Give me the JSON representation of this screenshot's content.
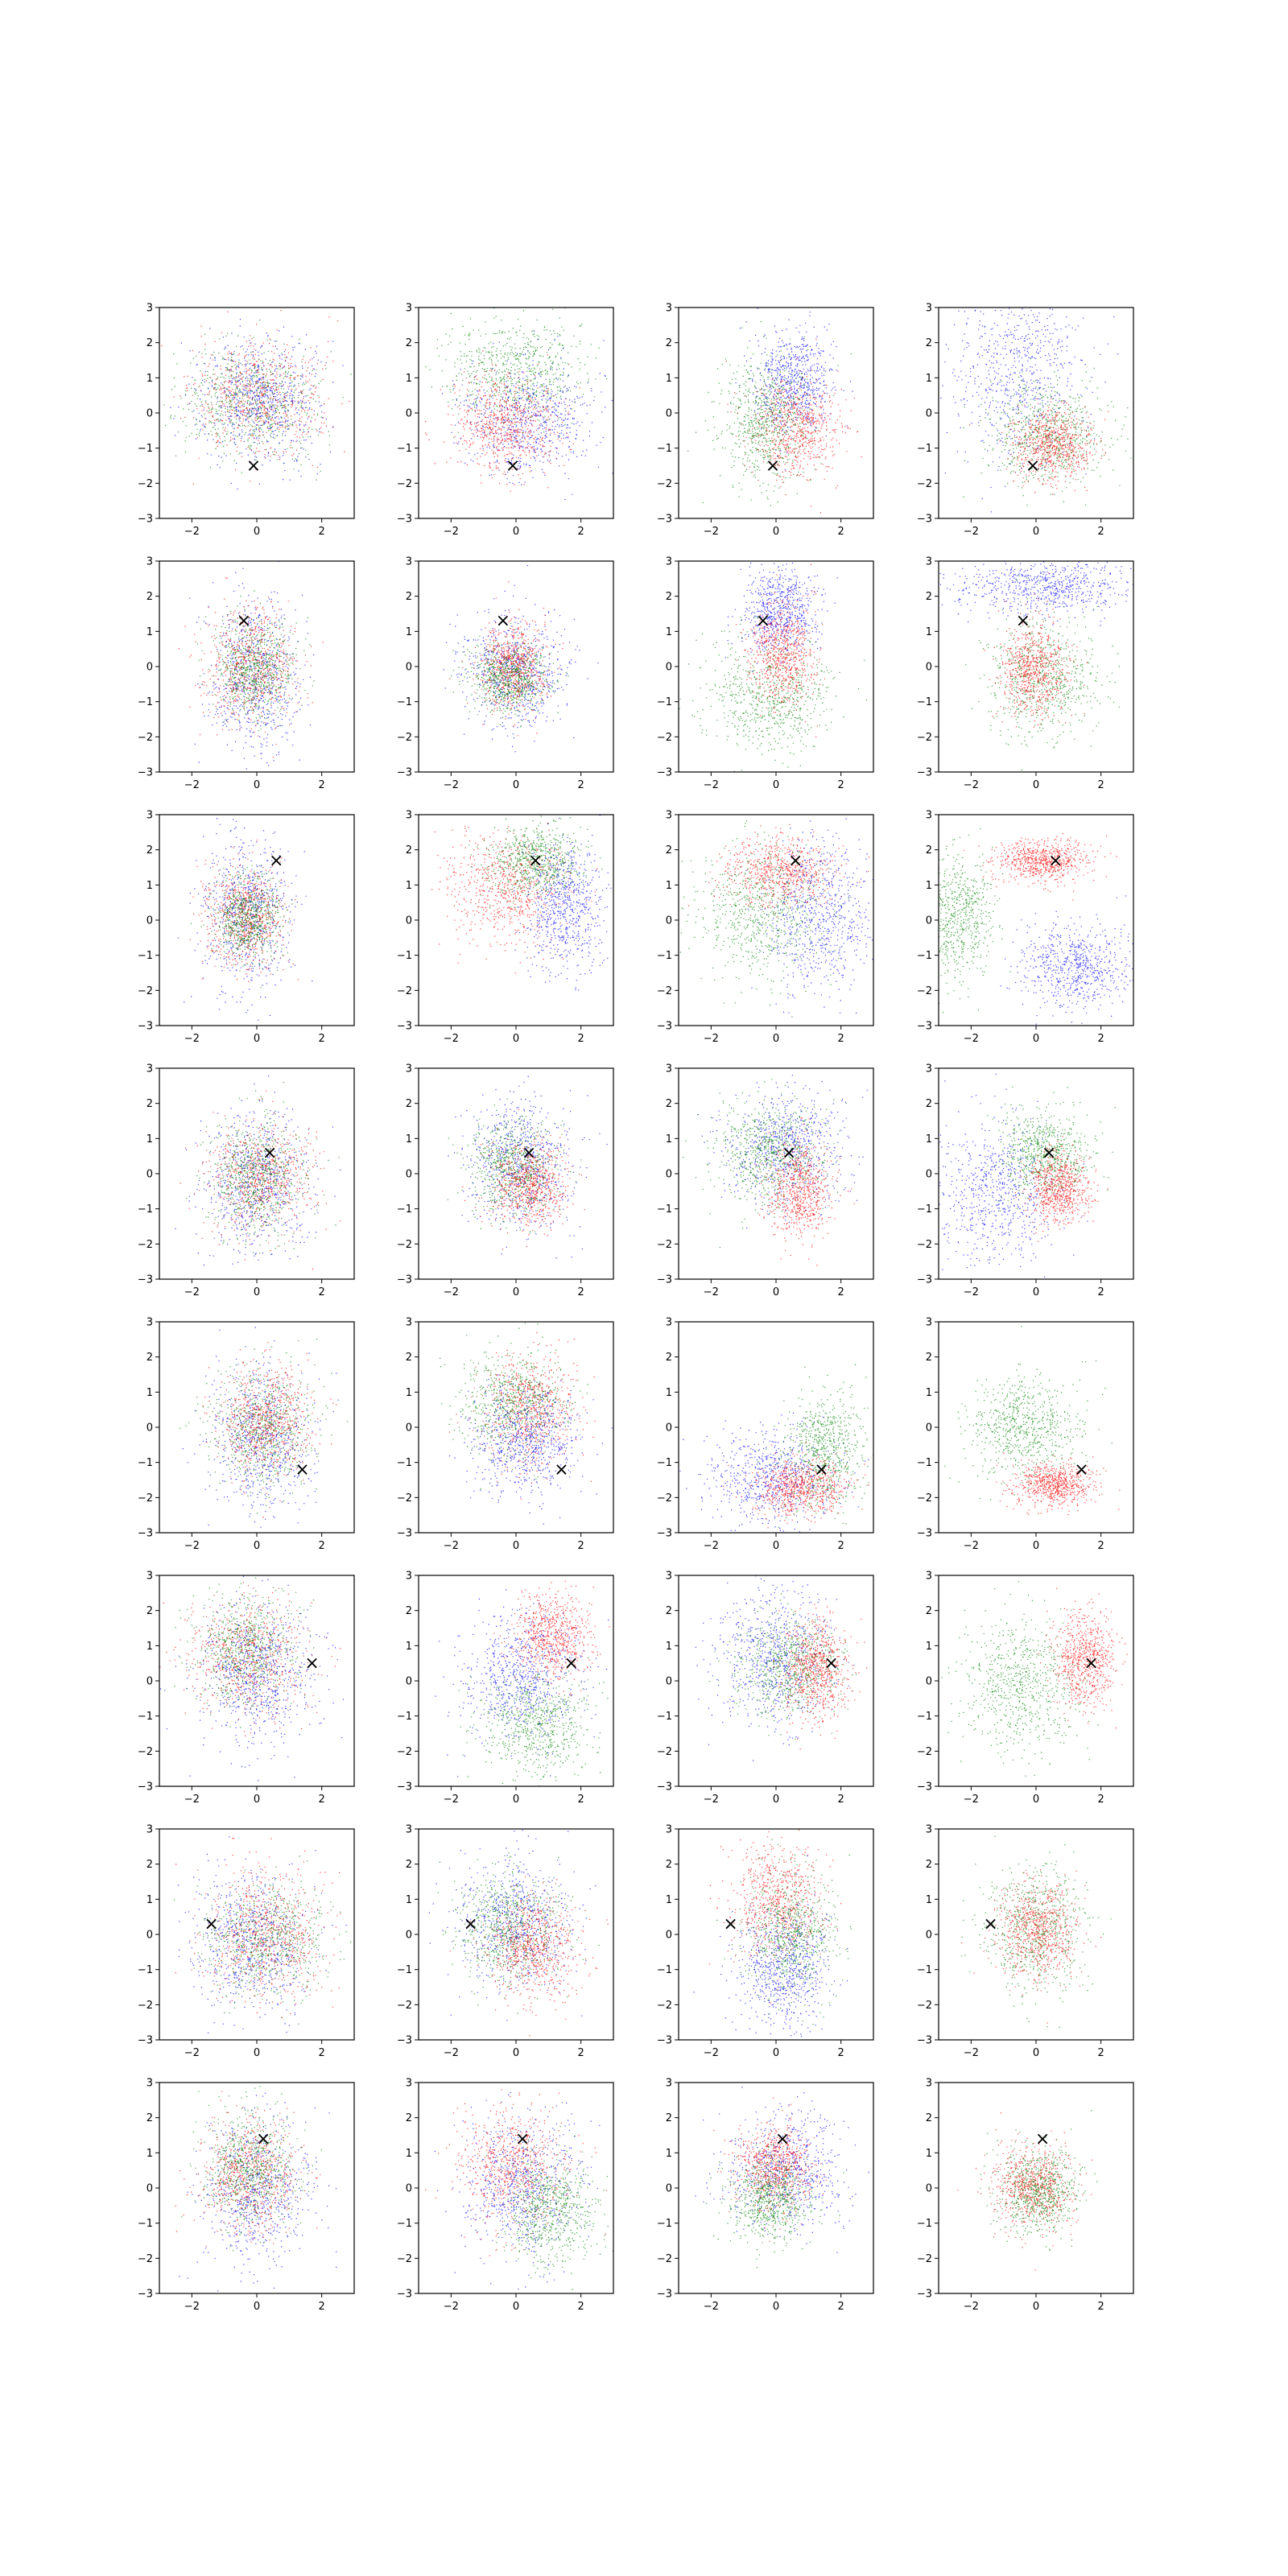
{
  "chart_data": {
    "type": "scatter",
    "layout": {
      "rows": 8,
      "cols": 4
    },
    "axes": {
      "xlim": [
        -3,
        3
      ],
      "ylim": [
        -3,
        3
      ],
      "xticks": [
        -2,
        0,
        2
      ],
      "yticks": [
        -3,
        -2,
        -1,
        0,
        1,
        2,
        3
      ],
      "xtick_labels": [
        "−2",
        "0",
        "2"
      ],
      "ytick_labels": [
        "−3",
        "−2",
        "−1",
        "0",
        "1",
        "2",
        "3"
      ],
      "grid": false
    },
    "colors": {
      "red": "#ff0000",
      "green": "#008000",
      "blue": "#0000ff",
      "marker": "#000000"
    },
    "marker_symbol": "×",
    "points_per_cluster": 700,
    "markers": [
      {
        "row": 0,
        "x": -0.1,
        "y": -1.5
      },
      {
        "row": 1,
        "x": -0.4,
        "y": 1.3
      },
      {
        "row": 2,
        "x": 0.6,
        "y": 1.7
      },
      {
        "row": 3,
        "x": 0.4,
        "y": 0.6
      },
      {
        "row": 4,
        "x": 1.4,
        "y": -1.2
      },
      {
        "row": 5,
        "x": 1.7,
        "y": 0.5
      },
      {
        "row": 6,
        "x": -1.4,
        "y": 0.3
      },
      {
        "row": 7,
        "x": 0.2,
        "y": 1.4
      }
    ],
    "panels": [
      {
        "row": 0,
        "col": 0,
        "clusters": [
          {
            "color": "red",
            "cx": 0.0,
            "cy": 0.4,
            "sx": 1.0,
            "sy": 0.8
          },
          {
            "color": "green",
            "cx": -0.2,
            "cy": 0.4,
            "sx": 1.0,
            "sy": 0.8
          },
          {
            "color": "blue",
            "cx": 0.1,
            "cy": 0.4,
            "sx": 0.9,
            "sy": 0.9
          }
        ]
      },
      {
        "row": 0,
        "col": 1,
        "clusters": [
          {
            "color": "green",
            "cx": 0.0,
            "cy": 1.2,
            "sx": 1.1,
            "sy": 0.7
          },
          {
            "color": "blue",
            "cx": 0.4,
            "cy": -0.2,
            "sx": 1.0,
            "sy": 0.8
          },
          {
            "color": "red",
            "cx": -0.3,
            "cy": -0.3,
            "sx": 0.8,
            "sy": 0.7
          }
        ]
      },
      {
        "row": 0,
        "col": 2,
        "clusters": [
          {
            "color": "blue",
            "cx": 0.5,
            "cy": 0.9,
            "sx": 0.6,
            "sy": 0.7
          },
          {
            "color": "red",
            "cx": 0.6,
            "cy": -0.4,
            "sx": 0.7,
            "sy": 0.7
          },
          {
            "color": "green",
            "cx": -0.4,
            "cy": -0.2,
            "sx": 0.7,
            "sy": 0.9
          }
        ]
      },
      {
        "row": 0,
        "col": 3,
        "clusters": [
          {
            "color": "blue",
            "cx": -0.6,
            "cy": 1.2,
            "sx": 1.0,
            "sy": 1.3
          },
          {
            "color": "green",
            "cx": 0.3,
            "cy": -0.6,
            "sx": 0.9,
            "sy": 0.7
          },
          {
            "color": "red",
            "cx": 0.5,
            "cy": -0.9,
            "sx": 0.6,
            "sy": 0.5
          }
        ]
      },
      {
        "row": 1,
        "col": 0,
        "clusters": [
          {
            "color": "blue",
            "cx": -0.1,
            "cy": -0.2,
            "sx": 0.7,
            "sy": 1.1
          },
          {
            "color": "red",
            "cx": -0.2,
            "cy": 0.0,
            "sx": 0.7,
            "sy": 0.8
          },
          {
            "color": "green",
            "cx": -0.1,
            "cy": 0.0,
            "sx": 0.6,
            "sy": 0.7
          }
        ]
      },
      {
        "row": 1,
        "col": 1,
        "clusters": [
          {
            "color": "blue",
            "cx": 0.0,
            "cy": -0.1,
            "sx": 0.8,
            "sy": 0.8
          },
          {
            "color": "red",
            "cx": -0.1,
            "cy": 0.0,
            "sx": 0.5,
            "sy": 0.6
          },
          {
            "color": "green",
            "cx": -0.2,
            "cy": -0.3,
            "sx": 0.6,
            "sy": 0.5
          }
        ]
      },
      {
        "row": 1,
        "col": 2,
        "clusters": [
          {
            "color": "blue",
            "cx": 0.1,
            "cy": 1.6,
            "sx": 0.6,
            "sy": 0.6
          },
          {
            "color": "green",
            "cx": -0.2,
            "cy": -0.8,
            "sx": 1.0,
            "sy": 0.8
          },
          {
            "color": "red",
            "cx": 0.2,
            "cy": 0.3,
            "sx": 0.5,
            "sy": 0.7
          }
        ]
      },
      {
        "row": 1,
        "col": 3,
        "clusters": [
          {
            "color": "blue",
            "cx": 0.3,
            "cy": 2.3,
            "sx": 1.3,
            "sy": 0.4
          },
          {
            "color": "green",
            "cx": 0.2,
            "cy": -0.3,
            "sx": 0.9,
            "sy": 0.9
          },
          {
            "color": "red",
            "cx": -0.1,
            "cy": 0.0,
            "sx": 0.5,
            "sy": 0.7
          }
        ]
      },
      {
        "row": 2,
        "col": 0,
        "clusters": [
          {
            "color": "blue",
            "cx": -0.3,
            "cy": 0.2,
            "sx": 0.7,
            "sy": 1.1
          },
          {
            "color": "red",
            "cx": -0.4,
            "cy": 0.1,
            "sx": 0.6,
            "sy": 0.7
          },
          {
            "color": "green",
            "cx": -0.3,
            "cy": 0.1,
            "sx": 0.5,
            "sy": 0.6
          }
        ]
      },
      {
        "row": 2,
        "col": 1,
        "clusters": [
          {
            "color": "red",
            "cx": -0.3,
            "cy": 0.9,
            "sx": 0.9,
            "sy": 0.8
          },
          {
            "color": "green",
            "cx": 0.6,
            "cy": 1.7,
            "sx": 0.7,
            "sy": 0.5
          },
          {
            "color": "blue",
            "cx": 1.5,
            "cy": 0.4,
            "sx": 0.6,
            "sy": 0.9
          }
        ]
      },
      {
        "row": 2,
        "col": 2,
        "clusters": [
          {
            "color": "red",
            "cx": 0.1,
            "cy": 1.4,
            "sx": 0.8,
            "sy": 0.5
          },
          {
            "color": "green",
            "cx": -0.5,
            "cy": 0.2,
            "sx": 1.0,
            "sy": 0.9
          },
          {
            "color": "blue",
            "cx": 1.3,
            "cy": 0.1,
            "sx": 0.8,
            "sy": 1.1
          }
        ]
      },
      {
        "row": 2,
        "col": 3,
        "clusters": [
          {
            "color": "red",
            "cx": 0.2,
            "cy": 1.7,
            "sx": 0.7,
            "sy": 0.3
          },
          {
            "color": "green",
            "cx": -2.5,
            "cy": 0.1,
            "sx": 0.6,
            "sy": 0.9
          },
          {
            "color": "blue",
            "cx": 1.2,
            "cy": -1.3,
            "sx": 0.9,
            "sy": 0.6
          }
        ]
      },
      {
        "row": 3,
        "col": 0,
        "clusters": [
          {
            "color": "blue",
            "cx": 0.0,
            "cy": -0.2,
            "sx": 0.8,
            "sy": 1.0
          },
          {
            "color": "red",
            "cx": 0.1,
            "cy": -0.1,
            "sx": 0.8,
            "sy": 0.8
          },
          {
            "color": "green",
            "cx": 0.0,
            "cy": -0.1,
            "sx": 0.7,
            "sy": 0.8
          }
        ]
      },
      {
        "row": 3,
        "col": 1,
        "clusters": [
          {
            "color": "blue",
            "cx": 0.1,
            "cy": 0.3,
            "sx": 0.8,
            "sy": 0.9
          },
          {
            "color": "green",
            "cx": -0.1,
            "cy": 0.2,
            "sx": 0.7,
            "sy": 0.7
          },
          {
            "color": "red",
            "cx": 0.4,
            "cy": -0.3,
            "sx": 0.6,
            "sy": 0.6
          }
        ]
      },
      {
        "row": 3,
        "col": 2,
        "clusters": [
          {
            "color": "blue",
            "cx": 0.3,
            "cy": 0.8,
            "sx": 0.9,
            "sy": 0.8
          },
          {
            "color": "green",
            "cx": -0.2,
            "cy": 0.6,
            "sx": 0.8,
            "sy": 0.7
          },
          {
            "color": "red",
            "cx": 0.7,
            "cy": -0.4,
            "sx": 0.5,
            "sy": 0.7
          }
        ]
      },
      {
        "row": 3,
        "col": 3,
        "clusters": [
          {
            "color": "blue",
            "cx": -1.2,
            "cy": -0.6,
            "sx": 0.9,
            "sy": 1.0
          },
          {
            "color": "green",
            "cx": 0.3,
            "cy": 0.6,
            "sx": 0.7,
            "sy": 0.6
          },
          {
            "color": "red",
            "cx": 0.7,
            "cy": -0.4,
            "sx": 0.5,
            "sy": 0.5
          }
        ]
      },
      {
        "row": 4,
        "col": 0,
        "clusters": [
          {
            "color": "blue",
            "cx": 0.1,
            "cy": -0.3,
            "sx": 0.8,
            "sy": 1.1
          },
          {
            "color": "green",
            "cx": 0.2,
            "cy": 0.0,
            "sx": 0.8,
            "sy": 0.8
          },
          {
            "color": "red",
            "cx": 0.3,
            "cy": 0.2,
            "sx": 0.7,
            "sy": 0.8
          }
        ]
      },
      {
        "row": 4,
        "col": 1,
        "clusters": [
          {
            "color": "red",
            "cx": 0.4,
            "cy": 0.5,
            "sx": 0.7,
            "sy": 0.8
          },
          {
            "color": "green",
            "cx": -0.1,
            "cy": 0.7,
            "sx": 0.8,
            "sy": 0.7
          },
          {
            "color": "blue",
            "cx": 0.3,
            "cy": -0.4,
            "sx": 0.8,
            "sy": 0.8
          }
        ]
      },
      {
        "row": 4,
        "col": 2,
        "clusters": [
          {
            "color": "blue",
            "cx": -0.1,
            "cy": -1.4,
            "sx": 1.0,
            "sy": 0.7
          },
          {
            "color": "green",
            "cx": 1.5,
            "cy": -0.6,
            "sx": 0.6,
            "sy": 0.8
          },
          {
            "color": "red",
            "cx": 0.8,
            "cy": -1.7,
            "sx": 0.7,
            "sy": 0.4
          }
        ]
      },
      {
        "row": 4,
        "col": 3,
        "clusters": [
          {
            "color": "green",
            "cx": -0.4,
            "cy": 0.0,
            "sx": 0.9,
            "sy": 0.7
          },
          {
            "color": "red",
            "cx": 0.5,
            "cy": -1.6,
            "sx": 0.6,
            "sy": 0.3
          }
        ]
      },
      {
        "row": 5,
        "col": 0,
        "clusters": [
          {
            "color": "red",
            "cx": -0.3,
            "cy": 0.7,
            "sx": 0.9,
            "sy": 0.8
          },
          {
            "color": "green",
            "cx": -0.4,
            "cy": 0.9,
            "sx": 0.8,
            "sy": 0.8
          },
          {
            "color": "blue",
            "cx": 0.0,
            "cy": 0.2,
            "sx": 0.9,
            "sy": 1.0
          }
        ]
      },
      {
        "row": 5,
        "col": 1,
        "clusters": [
          {
            "color": "red",
            "cx": 1.1,
            "cy": 1.3,
            "sx": 0.6,
            "sy": 0.6
          },
          {
            "color": "green",
            "cx": 0.6,
            "cy": -1.2,
            "sx": 0.8,
            "sy": 0.7
          },
          {
            "color": "blue",
            "cx": 0.2,
            "cy": 0.2,
            "sx": 0.9,
            "sy": 0.9
          }
        ]
      },
      {
        "row": 5,
        "col": 2,
        "clusters": [
          {
            "color": "blue",
            "cx": -0.1,
            "cy": 0.7,
            "sx": 0.9,
            "sy": 1.0
          },
          {
            "color": "green",
            "cx": 0.4,
            "cy": 0.4,
            "sx": 0.8,
            "sy": 0.7
          },
          {
            "color": "red",
            "cx": 1.2,
            "cy": 0.3,
            "sx": 0.5,
            "sy": 0.7
          }
        ]
      },
      {
        "row": 5,
        "col": 3,
        "clusters": [
          {
            "color": "green",
            "cx": -0.5,
            "cy": -0.1,
            "sx": 0.9,
            "sy": 0.9
          },
          {
            "color": "red",
            "cx": 1.5,
            "cy": 0.6,
            "sx": 0.5,
            "sy": 0.7
          }
        ]
      },
      {
        "row": 6,
        "col": 0,
        "clusters": [
          {
            "color": "blue",
            "cx": -0.1,
            "cy": -0.2,
            "sx": 0.9,
            "sy": 1.0
          },
          {
            "color": "green",
            "cx": 0.3,
            "cy": -0.1,
            "sx": 0.9,
            "sy": 0.8
          },
          {
            "color": "red",
            "cx": 0.2,
            "cy": 0.0,
            "sx": 0.9,
            "sy": 0.9
          }
        ]
      },
      {
        "row": 6,
        "col": 1,
        "clusters": [
          {
            "color": "blue",
            "cx": 0.0,
            "cy": 0.3,
            "sx": 0.9,
            "sy": 0.9
          },
          {
            "color": "green",
            "cx": -0.2,
            "cy": 0.2,
            "sx": 0.8,
            "sy": 0.8
          },
          {
            "color": "red",
            "cx": 0.5,
            "cy": -0.4,
            "sx": 0.7,
            "sy": 0.7
          }
        ]
      },
      {
        "row": 6,
        "col": 2,
        "clusters": [
          {
            "color": "red",
            "cx": 0.0,
            "cy": 0.9,
            "sx": 0.7,
            "sy": 0.8
          },
          {
            "color": "blue",
            "cx": 0.2,
            "cy": -1.0,
            "sx": 0.7,
            "sy": 0.8
          },
          {
            "color": "green",
            "cx": 0.5,
            "cy": 0.0,
            "sx": 0.7,
            "sy": 0.8
          }
        ]
      },
      {
        "row": 6,
        "col": 3,
        "clusters": [
          {
            "color": "green",
            "cx": -0.1,
            "cy": 0.2,
            "sx": 0.8,
            "sy": 0.9
          },
          {
            "color": "red",
            "cx": 0.0,
            "cy": 0.1,
            "sx": 0.6,
            "sy": 0.7
          }
        ]
      },
      {
        "row": 7,
        "col": 0,
        "clusters": [
          {
            "color": "blue",
            "cx": 0.0,
            "cy": -0.2,
            "sx": 0.8,
            "sy": 1.0
          },
          {
            "color": "red",
            "cx": -0.2,
            "cy": 0.4,
            "sx": 0.7,
            "sy": 0.8
          },
          {
            "color": "green",
            "cx": -0.2,
            "cy": 0.6,
            "sx": 0.7,
            "sy": 0.8
          }
        ]
      },
      {
        "row": 7,
        "col": 1,
        "clusters": [
          {
            "color": "red",
            "cx": -0.1,
            "cy": 0.6,
            "sx": 0.8,
            "sy": 0.8
          },
          {
            "color": "blue",
            "cx": 0.2,
            "cy": 0.1,
            "sx": 0.9,
            "sy": 1.0
          },
          {
            "color": "green",
            "cx": 1.0,
            "cy": -0.6,
            "sx": 0.7,
            "sy": 0.8
          }
        ]
      },
      {
        "row": 7,
        "col": 2,
        "clusters": [
          {
            "color": "blue",
            "cx": 0.3,
            "cy": 0.5,
            "sx": 0.9,
            "sy": 0.8
          },
          {
            "color": "red",
            "cx": -0.1,
            "cy": 0.6,
            "sx": 0.6,
            "sy": 0.6
          },
          {
            "color": "green",
            "cx": -0.2,
            "cy": -0.3,
            "sx": 0.6,
            "sy": 0.6
          }
        ]
      },
      {
        "row": 7,
        "col": 3,
        "clusters": [
          {
            "color": "red",
            "cx": -0.1,
            "cy": 0.1,
            "sx": 0.6,
            "sy": 0.6
          },
          {
            "color": "green",
            "cx": 0.1,
            "cy": -0.1,
            "sx": 0.6,
            "sy": 0.6
          }
        ]
      }
    ]
  }
}
